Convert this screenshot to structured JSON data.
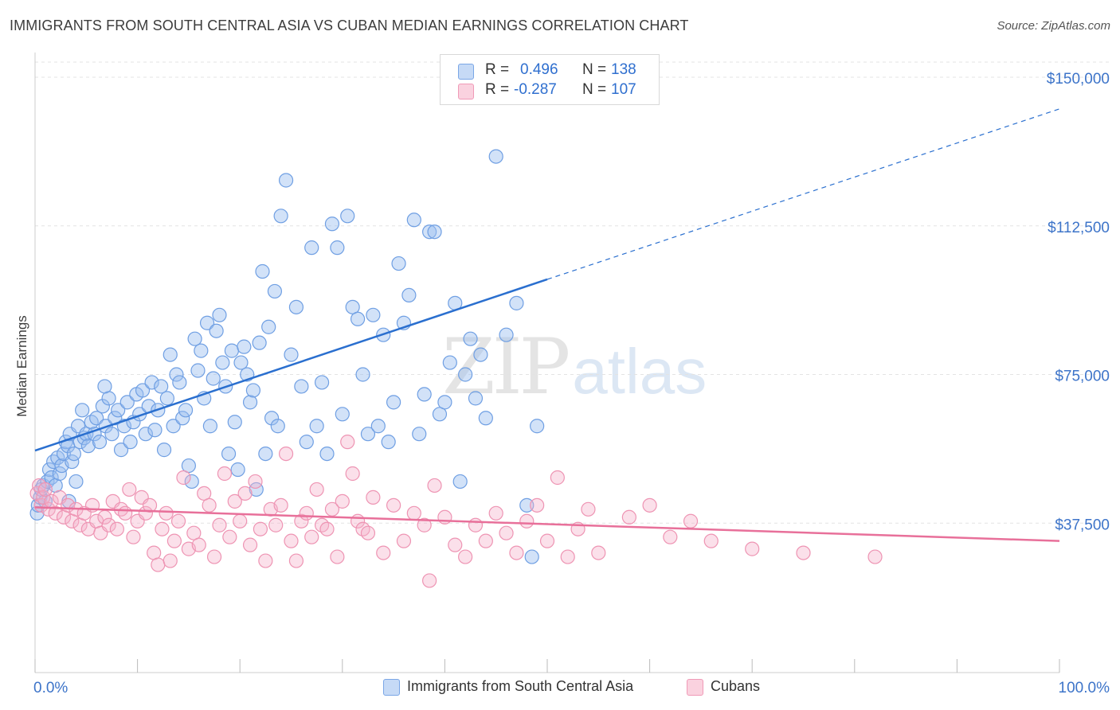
{
  "title": "IMMIGRANTS FROM SOUTH CENTRAL ASIA VS CUBAN MEDIAN EARNINGS CORRELATION CHART",
  "source": "Source: ZipAtlas.com",
  "watermark": {
    "zip": "ZIP",
    "atlas": "atlas"
  },
  "colors": {
    "blue": "#7aa6e6",
    "blue_line": "#2a6fcf",
    "pink": "#f09ab7",
    "pink_line": "#e8709a",
    "grid": "#e3e3e3",
    "tick_label": "#3d74c9"
  },
  "legend": {
    "rows": [
      {
        "r_label": "R =",
        "r_value": "0.496",
        "n_label": "N =",
        "n_value": "138",
        "color": "#9fc0ef"
      },
      {
        "r_label": "R =",
        "r_value": "-0.287",
        "n_label": "N =",
        "n_value": "107",
        "color": "#f6b8cd"
      }
    ]
  },
  "bottom_legend": [
    {
      "label": "Immigrants from South Central Asia",
      "color": "#b9d1f3"
    },
    {
      "label": "Cubans",
      "color": "#f8c9d8"
    }
  ],
  "chart_data": {
    "type": "scatter",
    "title": "IMMIGRANTS FROM SOUTH CENTRAL ASIA VS CUBAN MEDIAN EARNINGS CORRELATION CHART",
    "xlabel": "",
    "ylabel": "Median Earnings",
    "xlim": [
      0,
      100
    ],
    "ylim": [
      0,
      155000
    ],
    "x_tick_labels": [
      "0.0%",
      "100.0%"
    ],
    "y_ticks": [
      37500,
      75000,
      112500,
      150000
    ],
    "y_tick_labels": [
      "$37,500",
      "$75,000",
      "$112,500",
      "$150,000"
    ],
    "grid": true,
    "legend_position": "top-center",
    "series": [
      {
        "name": "Immigrants from South Central Asia",
        "trend": {
          "x": [
            0,
            50
          ],
          "y": [
            55800,
            99000
          ],
          "dashed_to": [
            100,
            142000
          ]
        },
        "points": [
          [
            0.2,
            40000
          ],
          [
            0.3,
            42000
          ],
          [
            0.5,
            44000
          ],
          [
            0.6,
            46000
          ],
          [
            0.8,
            47000
          ],
          [
            1.0,
            43000
          ],
          [
            1.2,
            48000
          ],
          [
            1.4,
            51000
          ],
          [
            1.6,
            49000
          ],
          [
            1.8,
            53000
          ],
          [
            2.0,
            47000
          ],
          [
            2.2,
            54000
          ],
          [
            2.4,
            50000
          ],
          [
            2.6,
            52000
          ],
          [
            2.8,
            55000
          ],
          [
            3.0,
            58000
          ],
          [
            3.2,
            57000
          ],
          [
            3.4,
            60000
          ],
          [
            3.6,
            53000
          ],
          [
            3.8,
            55000
          ],
          [
            4.0,
            48000
          ],
          [
            4.2,
            62000
          ],
          [
            4.4,
            58000
          ],
          [
            4.6,
            66000
          ],
          [
            4.8,
            59000
          ],
          [
            5.0,
            60000
          ],
          [
            5.2,
            57000
          ],
          [
            5.5,
            63000
          ],
          [
            5.8,
            60000
          ],
          [
            6.0,
            64000
          ],
          [
            6.3,
            58000
          ],
          [
            6.6,
            67000
          ],
          [
            6.9,
            62000
          ],
          [
            7.2,
            69000
          ],
          [
            7.5,
            60000
          ],
          [
            7.8,
            64000
          ],
          [
            8.1,
            66000
          ],
          [
            8.4,
            56000
          ],
          [
            8.7,
            62000
          ],
          [
            9.0,
            68000
          ],
          [
            9.3,
            58000
          ],
          [
            9.6,
            63000
          ],
          [
            9.9,
            70000
          ],
          [
            10.2,
            65000
          ],
          [
            10.5,
            71000
          ],
          [
            10.8,
            60000
          ],
          [
            11.1,
            67000
          ],
          [
            11.4,
            73000
          ],
          [
            11.7,
            61000
          ],
          [
            12.0,
            66000
          ],
          [
            12.3,
            72000
          ],
          [
            12.6,
            56000
          ],
          [
            12.9,
            69000
          ],
          [
            13.2,
            80000
          ],
          [
            13.5,
            62000
          ],
          [
            13.8,
            75000
          ],
          [
            14.1,
            73000
          ],
          [
            14.4,
            64000
          ],
          [
            14.7,
            66000
          ],
          [
            15.0,
            52000
          ],
          [
            15.3,
            48000
          ],
          [
            15.6,
            84000
          ],
          [
            15.9,
            76000
          ],
          [
            16.2,
            81000
          ],
          [
            16.5,
            69000
          ],
          [
            16.8,
            88000
          ],
          [
            17.1,
            62000
          ],
          [
            17.4,
            74000
          ],
          [
            17.7,
            86000
          ],
          [
            18.0,
            90000
          ],
          [
            18.3,
            78000
          ],
          [
            18.6,
            72000
          ],
          [
            18.9,
            55000
          ],
          [
            19.2,
            81000
          ],
          [
            19.5,
            63000
          ],
          [
            19.8,
            51000
          ],
          [
            20.1,
            78000
          ],
          [
            20.4,
            82000
          ],
          [
            20.7,
            75000
          ],
          [
            21.0,
            68000
          ],
          [
            21.3,
            71000
          ],
          [
            21.6,
            46000
          ],
          [
            21.9,
            83000
          ],
          [
            22.2,
            101000
          ],
          [
            22.5,
            55000
          ],
          [
            22.8,
            87000
          ],
          [
            23.1,
            64000
          ],
          [
            23.4,
            96000
          ],
          [
            23.7,
            62000
          ],
          [
            24.0,
            115000
          ],
          [
            24.5,
            124000
          ],
          [
            25.0,
            80000
          ],
          [
            25.5,
            92000
          ],
          [
            26.0,
            72000
          ],
          [
            26.5,
            58000
          ],
          [
            27.0,
            107000
          ],
          [
            27.5,
            62000
          ],
          [
            28.0,
            73000
          ],
          [
            28.5,
            55000
          ],
          [
            29.0,
            113000
          ],
          [
            29.5,
            107000
          ],
          [
            30.0,
            65000
          ],
          [
            30.5,
            115000
          ],
          [
            31.0,
            92000
          ],
          [
            31.5,
            89000
          ],
          [
            32.0,
            75000
          ],
          [
            32.5,
            60000
          ],
          [
            33.0,
            90000
          ],
          [
            33.5,
            62000
          ],
          [
            34.0,
            85000
          ],
          [
            34.5,
            58000
          ],
          [
            35.0,
            68000
          ],
          [
            35.5,
            103000
          ],
          [
            36.0,
            88000
          ],
          [
            36.5,
            95000
          ],
          [
            37.0,
            114000
          ],
          [
            37.5,
            60000
          ],
          [
            38.0,
            70000
          ],
          [
            38.5,
            111000
          ],
          [
            39.0,
            111000
          ],
          [
            39.5,
            65000
          ],
          [
            40.0,
            68000
          ],
          [
            40.5,
            78000
          ],
          [
            41.0,
            93000
          ],
          [
            41.5,
            48000
          ],
          [
            42.0,
            75000
          ],
          [
            42.5,
            84000
          ],
          [
            43.0,
            69000
          ],
          [
            43.5,
            80000
          ],
          [
            44.0,
            64000
          ],
          [
            45.0,
            130000
          ],
          [
            46.0,
            85000
          ],
          [
            47.0,
            93000
          ],
          [
            48.0,
            42000
          ],
          [
            48.5,
            29000
          ],
          [
            49.0,
            62000
          ],
          [
            3.3,
            43000
          ],
          [
            6.8,
            72000
          ]
        ]
      },
      {
        "name": "Cubans",
        "trend": {
          "x": [
            0,
            100
          ],
          "y": [
            41500,
            33000
          ]
        },
        "points": [
          [
            0.2,
            45000
          ],
          [
            0.4,
            47000
          ],
          [
            0.6,
            42000
          ],
          [
            0.8,
            44000
          ],
          [
            1.0,
            46000
          ],
          [
            1.3,
            41000
          ],
          [
            1.6,
            43000
          ],
          [
            2.0,
            40000
          ],
          [
            2.4,
            44000
          ],
          [
            2.8,
            39000
          ],
          [
            3.2,
            42000
          ],
          [
            3.6,
            38000
          ],
          [
            4.0,
            41000
          ],
          [
            4.4,
            37000
          ],
          [
            4.8,
            40000
          ],
          [
            5.2,
            36000
          ],
          [
            5.6,
            42000
          ],
          [
            6.0,
            38000
          ],
          [
            6.4,
            35000
          ],
          [
            6.8,
            39000
          ],
          [
            7.2,
            37000
          ],
          [
            7.6,
            43000
          ],
          [
            8.0,
            36000
          ],
          [
            8.4,
            41000
          ],
          [
            8.8,
            40000
          ],
          [
            9.2,
            46000
          ],
          [
            9.6,
            34000
          ],
          [
            10.0,
            38000
          ],
          [
            10.4,
            44000
          ],
          [
            10.8,
            40000
          ],
          [
            11.2,
            42000
          ],
          [
            11.6,
            30000
          ],
          [
            12.0,
            27000
          ],
          [
            12.4,
            36000
          ],
          [
            12.8,
            40000
          ],
          [
            13.2,
            28000
          ],
          [
            13.6,
            33000
          ],
          [
            14.0,
            38000
          ],
          [
            14.5,
            49000
          ],
          [
            15.0,
            31000
          ],
          [
            15.5,
            35000
          ],
          [
            16.0,
            32000
          ],
          [
            16.5,
            45000
          ],
          [
            17.0,
            42000
          ],
          [
            17.5,
            29000
          ],
          [
            18.0,
            37000
          ],
          [
            18.5,
            50000
          ],
          [
            19.0,
            34000
          ],
          [
            19.5,
            43000
          ],
          [
            20.0,
            38000
          ],
          [
            20.5,
            45000
          ],
          [
            21.0,
            32000
          ],
          [
            21.5,
            48000
          ],
          [
            22.0,
            36000
          ],
          [
            22.5,
            28000
          ],
          [
            23.0,
            41000
          ],
          [
            23.5,
            37000
          ],
          [
            24.0,
            42000
          ],
          [
            24.5,
            55000
          ],
          [
            25.0,
            33000
          ],
          [
            25.5,
            28000
          ],
          [
            26.0,
            38000
          ],
          [
            26.5,
            40000
          ],
          [
            27.0,
            34000
          ],
          [
            27.5,
            46000
          ],
          [
            28.0,
            37000
          ],
          [
            28.5,
            36000
          ],
          [
            29.0,
            41000
          ],
          [
            29.5,
            29000
          ],
          [
            30.0,
            43000
          ],
          [
            30.5,
            58000
          ],
          [
            31.0,
            50000
          ],
          [
            31.5,
            38000
          ],
          [
            32.0,
            36000
          ],
          [
            32.5,
            35000
          ],
          [
            33.0,
            44000
          ],
          [
            34.0,
            30000
          ],
          [
            35.0,
            42000
          ],
          [
            36.0,
            33000
          ],
          [
            37.0,
            40000
          ],
          [
            38.0,
            37000
          ],
          [
            38.5,
            23000
          ],
          [
            39.0,
            47000
          ],
          [
            40.0,
            39000
          ],
          [
            41.0,
            32000
          ],
          [
            42.0,
            29000
          ],
          [
            43.0,
            37000
          ],
          [
            44.0,
            33000
          ],
          [
            45.0,
            40000
          ],
          [
            46.0,
            35000
          ],
          [
            47.0,
            30000
          ],
          [
            48.0,
            38000
          ],
          [
            49.0,
            42000
          ],
          [
            50.0,
            33000
          ],
          [
            51.0,
            49000
          ],
          [
            52.0,
            29000
          ],
          [
            53.0,
            36000
          ],
          [
            54.0,
            41000
          ],
          [
            55.0,
            30000
          ],
          [
            58.0,
            39000
          ],
          [
            60.0,
            42000
          ],
          [
            62.0,
            34000
          ],
          [
            64.0,
            38000
          ],
          [
            66.0,
            33000
          ],
          [
            70.0,
            31000
          ],
          [
            75.0,
            30000
          ],
          [
            82.0,
            29000
          ]
        ]
      }
    ]
  }
}
